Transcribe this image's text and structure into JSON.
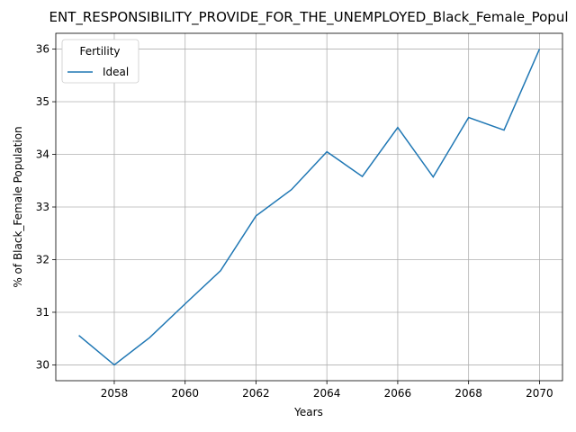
{
  "chart_data": {
    "type": "line",
    "title": "ENT_RESPONSIBILITY_PROVIDE_FOR_THE_UNEMPLOYED_Black_Female_Popul",
    "xlabel": "Years",
    "ylabel": "% of Black_Female Population",
    "xlim": [
      2056.35,
      2070.65
    ],
    "ylim": [
      29.7,
      36.3
    ],
    "xticks": [
      2058,
      2060,
      2062,
      2064,
      2066,
      2068,
      2070
    ],
    "yticks": [
      30,
      31,
      32,
      33,
      34,
      35,
      36
    ],
    "grid": true,
    "legend": {
      "title": "Fertility",
      "placement": "top-left"
    },
    "series": [
      {
        "name": "Ideal",
        "color": "#1f77b4",
        "x": [
          2057,
          2058,
          2059,
          2060,
          2061,
          2062,
          2063,
          2064,
          2065,
          2066,
          2067,
          2068,
          2069,
          2070
        ],
        "values": [
          30.56,
          30.0,
          30.52,
          31.16,
          31.79,
          32.83,
          33.33,
          34.05,
          33.58,
          34.51,
          33.57,
          34.7,
          34.46,
          36.0
        ]
      }
    ]
  }
}
